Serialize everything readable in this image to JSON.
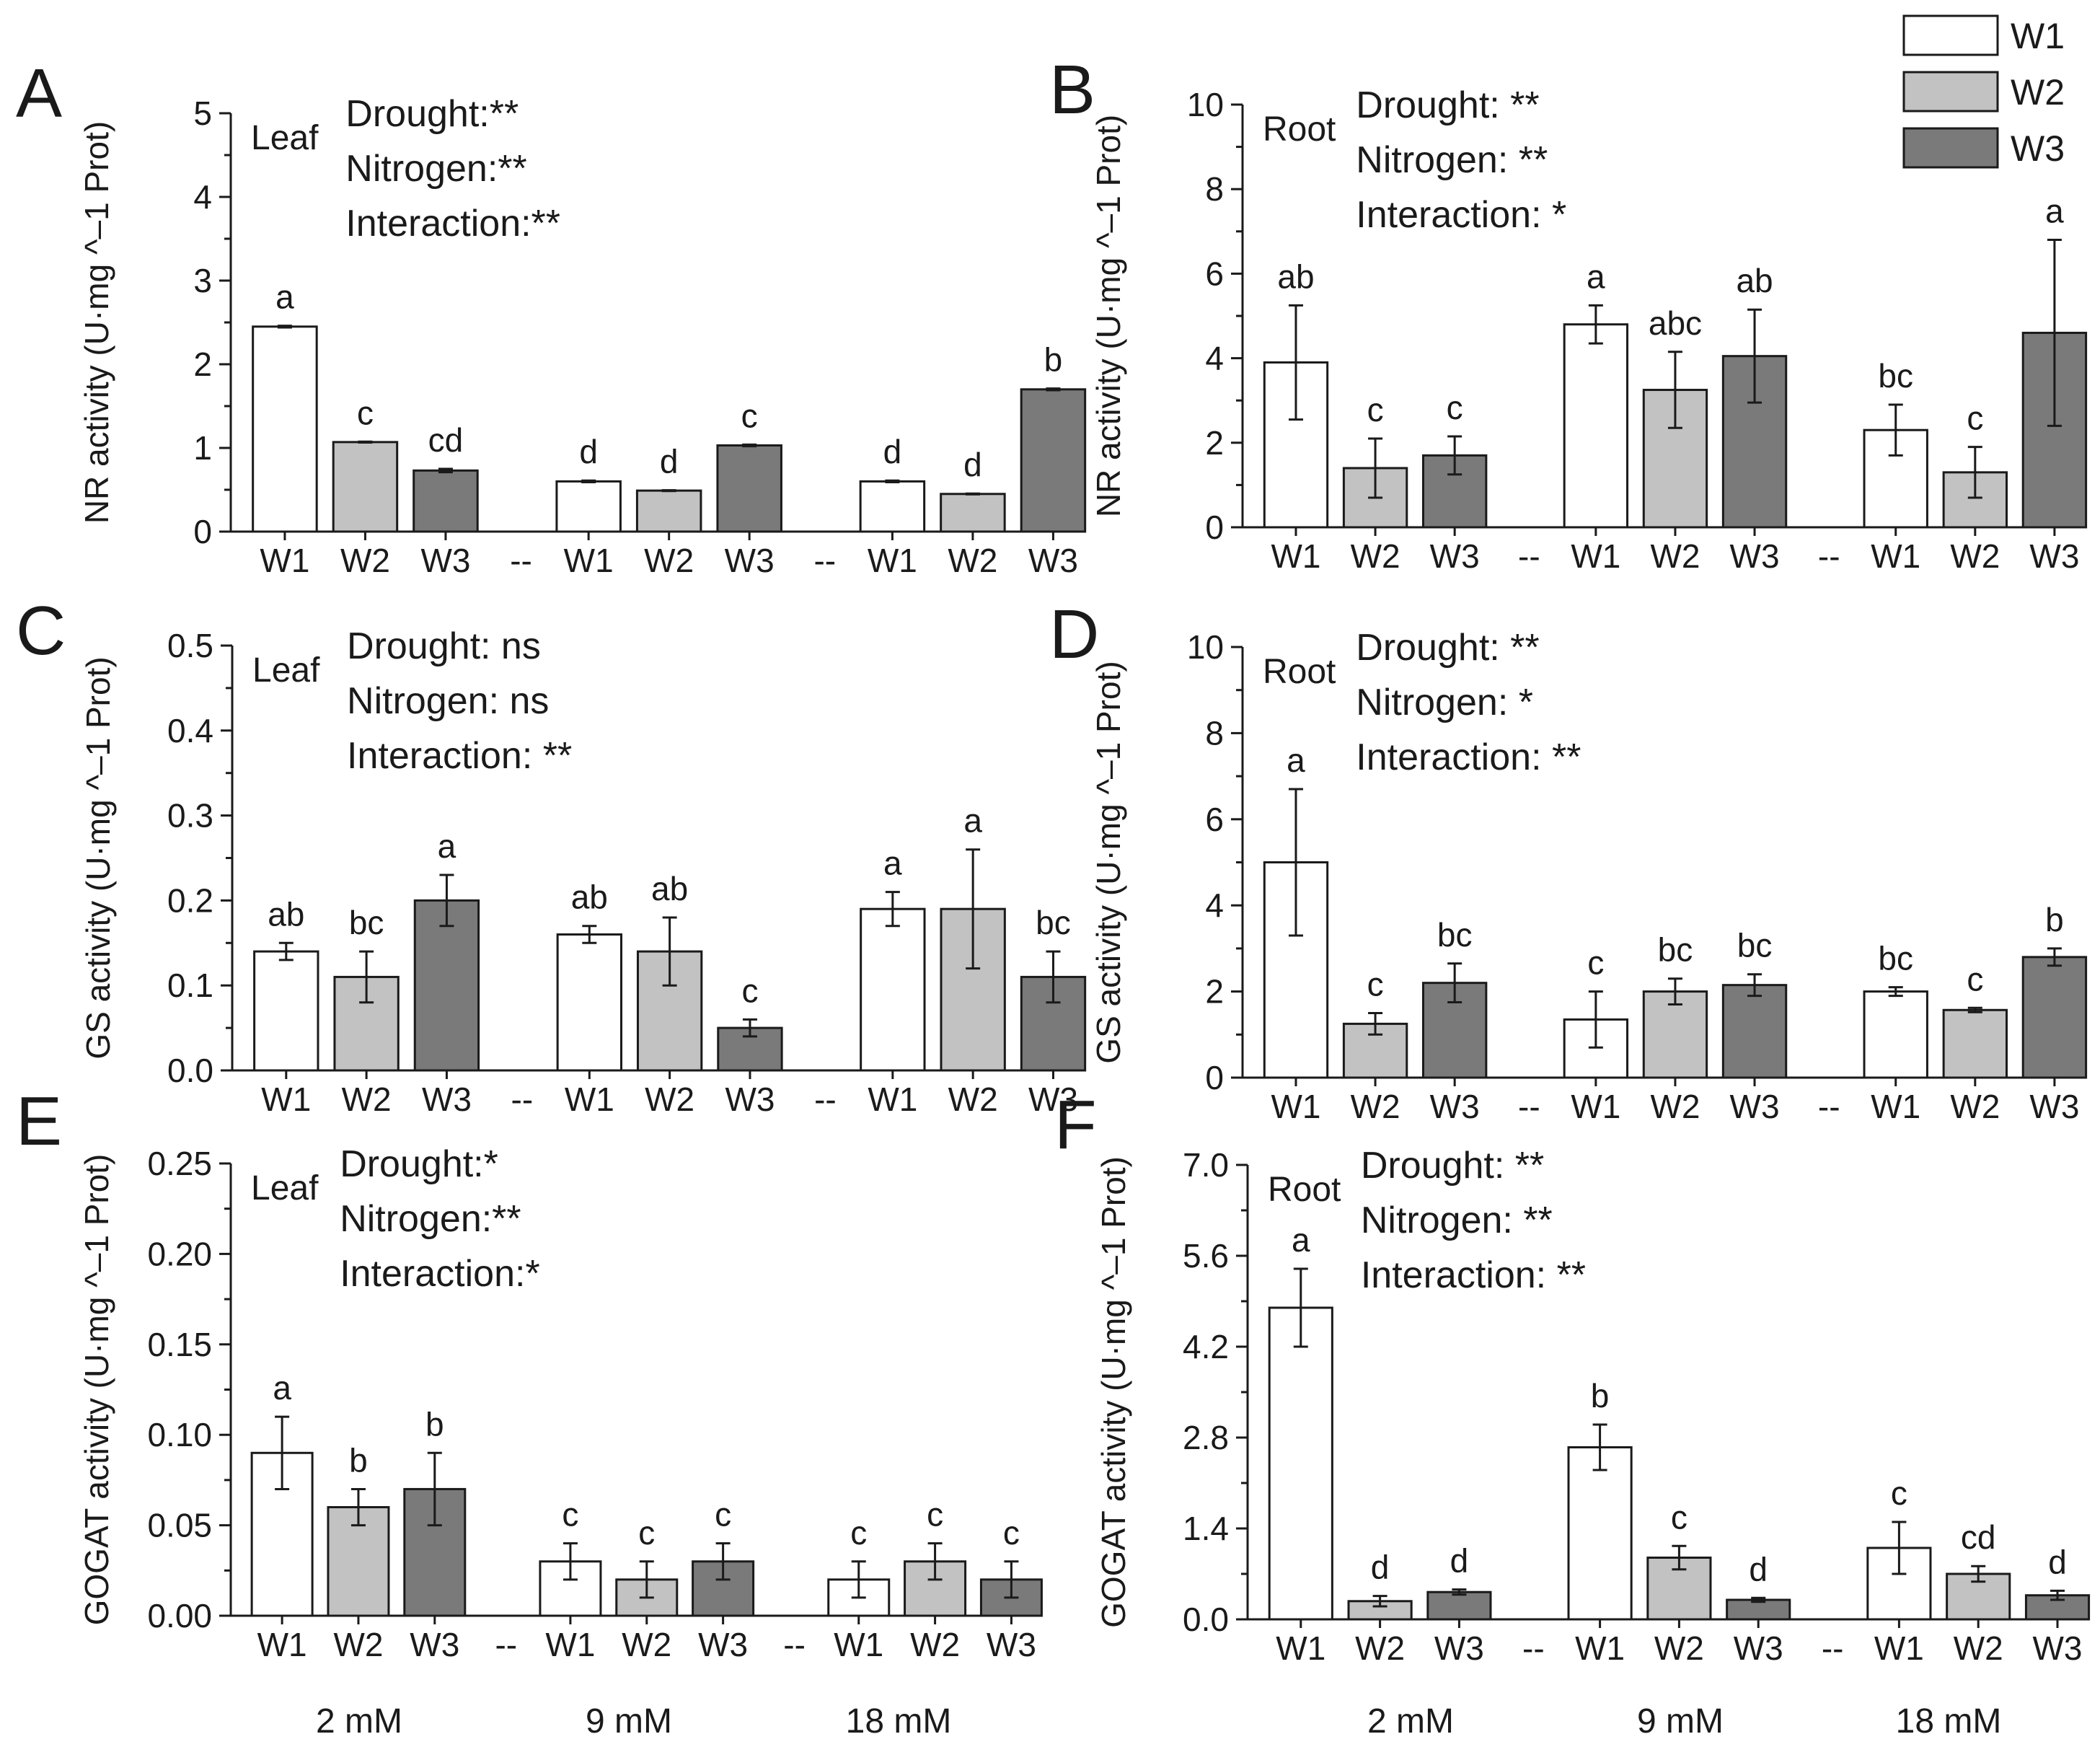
{
  "legend": {
    "entries": [
      {
        "name": "W1",
        "color": "#ffffff"
      },
      {
        "name": "W2",
        "color": "#c2c2c2"
      },
      {
        "name": "W3",
        "color": "#7a7a7a"
      }
    ],
    "placement": "top-right"
  },
  "x_category_labels": [
    "W1",
    "W2",
    "W3"
  ],
  "group_separator": "--",
  "nitrogen_levels": [
    "2 mM",
    "9 mM",
    "18 mM"
  ],
  "chart_data": [
    {
      "panel": "A",
      "type": "bar",
      "tissue": "Leaf",
      "ylabel": "NR activity  (U·mg ^–1 Prot)",
      "ylim": [
        0,
        5
      ],
      "yticks": [
        "0",
        "1",
        "2",
        "3",
        "4",
        "5"
      ],
      "stats": [
        "Drought:**",
        "Nitrogen:**",
        "Interaction:**"
      ],
      "series": [
        {
          "name": "W1",
          "values": [
            2.45,
            0.6,
            0.6
          ],
          "errors": [
            0.01,
            0.01,
            0.01
          ],
          "letters": [
            "a",
            "d",
            "d"
          ]
        },
        {
          "name": "W2",
          "values": [
            1.07,
            0.49,
            0.45
          ],
          "errors": [
            0.005,
            0.005,
            0.005
          ],
          "letters": [
            "c",
            "d",
            "d"
          ]
        },
        {
          "name": "W3",
          "values": [
            0.73,
            1.03,
            1.7
          ],
          "errors": [
            0.02,
            0.01,
            0.01
          ],
          "letters": [
            "cd",
            "c",
            "b"
          ]
        }
      ]
    },
    {
      "panel": "B",
      "type": "bar",
      "tissue": "Root",
      "ylabel": "NR activity  (U·mg ^–1 Prot)",
      "ylim": [
        0,
        10
      ],
      "yticks": [
        "0",
        "2",
        "4",
        "6",
        "8",
        "10"
      ],
      "stats": [
        "Drought: **",
        "Nitrogen: **",
        "Interaction: *"
      ],
      "series": [
        {
          "name": "W1",
          "values": [
            3.9,
            4.8,
            2.3
          ],
          "errors": [
            1.35,
            0.45,
            0.6
          ],
          "letters": [
            "ab",
            "a",
            "bc"
          ]
        },
        {
          "name": "W2",
          "values": [
            1.4,
            3.25,
            1.3
          ],
          "errors": [
            0.7,
            0.9,
            0.6
          ],
          "letters": [
            "c",
            "abc",
            "c"
          ]
        },
        {
          "name": "W3",
          "values": [
            1.7,
            4.05,
            4.6
          ],
          "errors": [
            0.45,
            1.1,
            2.2
          ],
          "letters": [
            "c",
            "ab",
            "a"
          ]
        }
      ]
    },
    {
      "panel": "C",
      "type": "bar",
      "tissue": "Leaf",
      "ylabel": "GS activity  (U·mg ^–1 Prot)",
      "ylim": [
        0,
        0.5
      ],
      "yticks": [
        "0.0",
        "0.1",
        "0.2",
        "0.3",
        "0.4",
        "0.5"
      ],
      "stats": [
        "Drought: ns",
        "Nitrogen: ns",
        "Interaction: **"
      ],
      "series": [
        {
          "name": "W1",
          "values": [
            0.14,
            0.16,
            0.19
          ],
          "errors": [
            0.01,
            0.01,
            0.02
          ],
          "letters": [
            "ab",
            "ab",
            "a"
          ]
        },
        {
          "name": "W2",
          "values": [
            0.11,
            0.14,
            0.19
          ],
          "errors": [
            0.03,
            0.04,
            0.07
          ],
          "letters": [
            "bc",
            "ab",
            "a"
          ]
        },
        {
          "name": "W3",
          "values": [
            0.2,
            0.05,
            0.11
          ],
          "errors": [
            0.03,
            0.01,
            0.03
          ],
          "letters": [
            "a",
            "c",
            "bc"
          ]
        }
      ]
    },
    {
      "panel": "D",
      "type": "bar",
      "tissue": "Root",
      "ylabel": "GS activity  (U·mg ^–1 Prot)",
      "ylim": [
        0,
        10
      ],
      "yticks": [
        "0",
        "2",
        "4",
        "6",
        "8",
        "10"
      ],
      "stats": [
        "Drought: **",
        "Nitrogen: *",
        "Interaction: **"
      ],
      "series": [
        {
          "name": "W1",
          "values": [
            5.0,
            1.35,
            2.0
          ],
          "errors": [
            1.7,
            0.65,
            0.1
          ],
          "letters": [
            "a",
            "c",
            "bc"
          ]
        },
        {
          "name": "W2",
          "values": [
            1.25,
            2.0,
            1.57
          ],
          "errors": [
            0.25,
            0.3,
            0.05
          ],
          "letters": [
            "c",
            "bc",
            "c"
          ]
        },
        {
          "name": "W3",
          "values": [
            2.2,
            2.15,
            2.8
          ],
          "errors": [
            0.45,
            0.25,
            0.2
          ],
          "letters": [
            "bc",
            "bc",
            "b"
          ]
        }
      ]
    },
    {
      "panel": "E",
      "type": "bar",
      "tissue": "Leaf",
      "ylabel": "GOGAT activity  (U·mg ^–1 Prot)",
      "ylim": [
        0,
        0.25
      ],
      "yticks": [
        "0.00",
        "0.05",
        "0.10",
        "0.15",
        "0.20",
        "0.25"
      ],
      "stats": [
        "Drought:*",
        "Nitrogen:**",
        "Interaction:*"
      ],
      "series": [
        {
          "name": "W1",
          "values": [
            0.09,
            0.03,
            0.02
          ],
          "errors": [
            0.02,
            0.01,
            0.01
          ],
          "letters": [
            "a",
            "c",
            "c"
          ]
        },
        {
          "name": "W2",
          "values": [
            0.06,
            0.02,
            0.03
          ],
          "errors": [
            0.01,
            0.01,
            0.01
          ],
          "letters": [
            "b",
            "c",
            "c"
          ]
        },
        {
          "name": "W3",
          "values": [
            0.07,
            0.03,
            0.02
          ],
          "errors": [
            0.02,
            0.01,
            0.01
          ],
          "letters": [
            "b",
            "c",
            "c"
          ]
        }
      ]
    },
    {
      "panel": "F",
      "type": "bar",
      "tissue": "Root",
      "ylabel": "GOGAT activity  (U·mg ^–1 Prot)",
      "ylim": [
        0,
        7
      ],
      "yticks": [
        "0.0",
        "1.4",
        "2.8",
        "4.2",
        "5.6",
        "7.0"
      ],
      "stats": [
        "Drought: **",
        "Nitrogen: **",
        "Interaction: **"
      ],
      "series": [
        {
          "name": "W1",
          "values": [
            4.8,
            2.65,
            1.1
          ],
          "errors": [
            0.6,
            0.35,
            0.4
          ],
          "letters": [
            "a",
            "b",
            "c"
          ]
        },
        {
          "name": "W2",
          "values": [
            0.28,
            0.95,
            0.7
          ],
          "errors": [
            0.08,
            0.18,
            0.12
          ],
          "letters": [
            "d",
            "c",
            "cd"
          ]
        },
        {
          "name": "W3",
          "values": [
            0.42,
            0.3,
            0.37
          ],
          "errors": [
            0.04,
            0.03,
            0.07
          ],
          "letters": [
            "d",
            "d",
            "d"
          ]
        }
      ]
    }
  ]
}
